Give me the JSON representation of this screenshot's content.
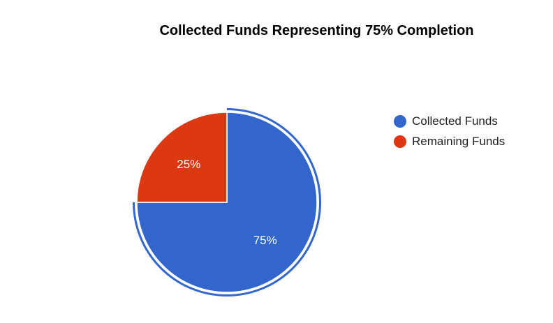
{
  "chart_data": {
    "type": "pie",
    "title": "Collected Funds Representing 75% Completion",
    "slices": [
      {
        "label": "Collected Funds",
        "value": 75,
        "data_label": "75%",
        "color": "#3366cc",
        "exploded": true
      },
      {
        "label": "Remaining Funds",
        "value": 25,
        "data_label": "25%",
        "color": "#dc3912",
        "exploded": false
      }
    ],
    "legend_position": "right"
  }
}
